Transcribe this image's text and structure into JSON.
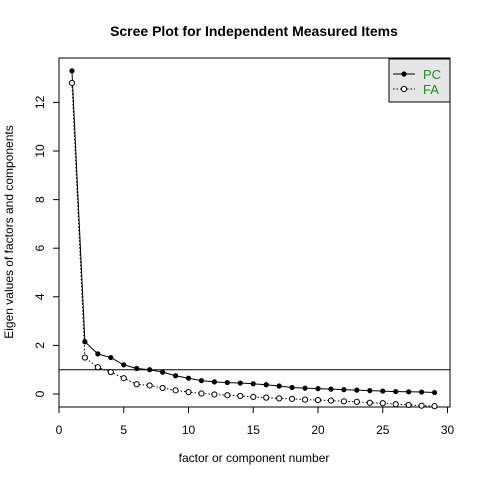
{
  "chart_data": {
    "type": "scatter",
    "title": "Scree Plot for Independent Measured Items",
    "xlabel": "factor or component number",
    "ylabel": "Eigen values of factors and components",
    "xlim": [
      0,
      30
    ],
    "ylim": [
      -0.5,
      13.5
    ],
    "x_ticks": [
      0,
      5,
      10,
      15,
      20,
      25,
      30
    ],
    "y_ticks": [
      0,
      2,
      4,
      6,
      8,
      10,
      12
    ],
    "reference_line_y": 1,
    "legend_position": "top-right",
    "legend_colors": {
      "text": "#1a8f1a",
      "background": "#e6e6e6"
    },
    "series": [
      {
        "name": "PC",
        "marker": "filled-circle",
        "line": "solid",
        "x": [
          1,
          2,
          3,
          4,
          5,
          6,
          7,
          8,
          9,
          10,
          11,
          12,
          13,
          14,
          15,
          16,
          17,
          18,
          19,
          20,
          21,
          22,
          23,
          24,
          25,
          26,
          27,
          28,
          29
        ],
        "values": [
          13.3,
          2.15,
          1.65,
          1.5,
          1.2,
          1.05,
          1.0,
          0.9,
          0.75,
          0.65,
          0.55,
          0.5,
          0.47,
          0.45,
          0.42,
          0.38,
          0.33,
          0.27,
          0.24,
          0.22,
          0.2,
          0.18,
          0.16,
          0.14,
          0.12,
          0.1,
          0.09,
          0.08,
          0.06
        ]
      },
      {
        "name": "FA",
        "marker": "open-circle",
        "line": "dotted",
        "x": [
          1,
          2,
          3,
          4,
          5,
          6,
          7,
          8,
          9,
          10,
          11,
          12,
          13,
          14,
          15,
          16,
          17,
          18,
          19,
          20,
          21,
          22,
          23,
          24,
          25,
          26,
          27,
          28,
          29
        ],
        "values": [
          12.8,
          1.5,
          1.1,
          0.9,
          0.65,
          0.4,
          0.35,
          0.25,
          0.15,
          0.08,
          0.02,
          -0.02,
          -0.05,
          -0.08,
          -0.12,
          -0.15,
          -0.18,
          -0.2,
          -0.23,
          -0.25,
          -0.27,
          -0.3,
          -0.32,
          -0.36,
          -0.38,
          -0.42,
          -0.45,
          -0.48,
          -0.5
        ]
      }
    ]
  }
}
